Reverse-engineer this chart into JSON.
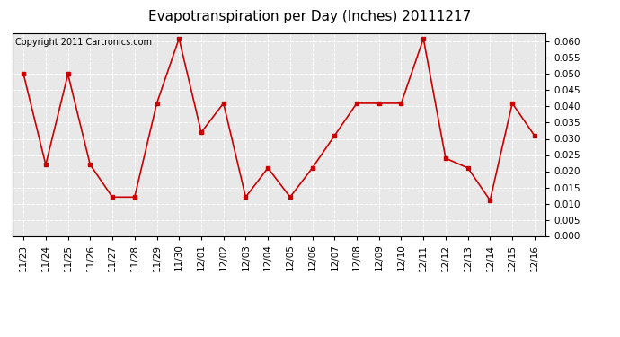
{
  "title": "Evapotranspiration per Day (Inches) 20111217",
  "copyright": "Copyright 2011 Cartronics.com",
  "x_labels": [
    "11/23",
    "11/24",
    "11/25",
    "11/26",
    "11/27",
    "11/28",
    "11/29",
    "11/30",
    "12/01",
    "12/02",
    "12/03",
    "12/04",
    "12/05",
    "12/06",
    "12/07",
    "12/08",
    "12/09",
    "12/10",
    "12/11",
    "12/12",
    "12/13",
    "12/14",
    "12/15",
    "12/16"
  ],
  "y_values": [
    0.05,
    0.022,
    0.05,
    0.022,
    0.012,
    0.012,
    0.041,
    0.061,
    0.032,
    0.041,
    0.012,
    0.021,
    0.012,
    0.021,
    0.031,
    0.041,
    0.041,
    0.041,
    0.061,
    0.024,
    0.021,
    0.011,
    0.041,
    0.031
  ],
  "ylim": [
    0.0,
    0.0625
  ],
  "yticks": [
    0.0,
    0.005,
    0.01,
    0.015,
    0.02,
    0.025,
    0.03,
    0.035,
    0.04,
    0.045,
    0.05,
    0.055,
    0.06
  ],
  "line_color": "#cc0000",
  "marker_color": "#cc0000",
  "plot_bg_color": "#e8e8e8",
  "fig_bg_color": "#ffffff",
  "grid_color": "#ffffff",
  "title_fontsize": 11,
  "copyright_fontsize": 7,
  "tick_fontsize": 7.5
}
